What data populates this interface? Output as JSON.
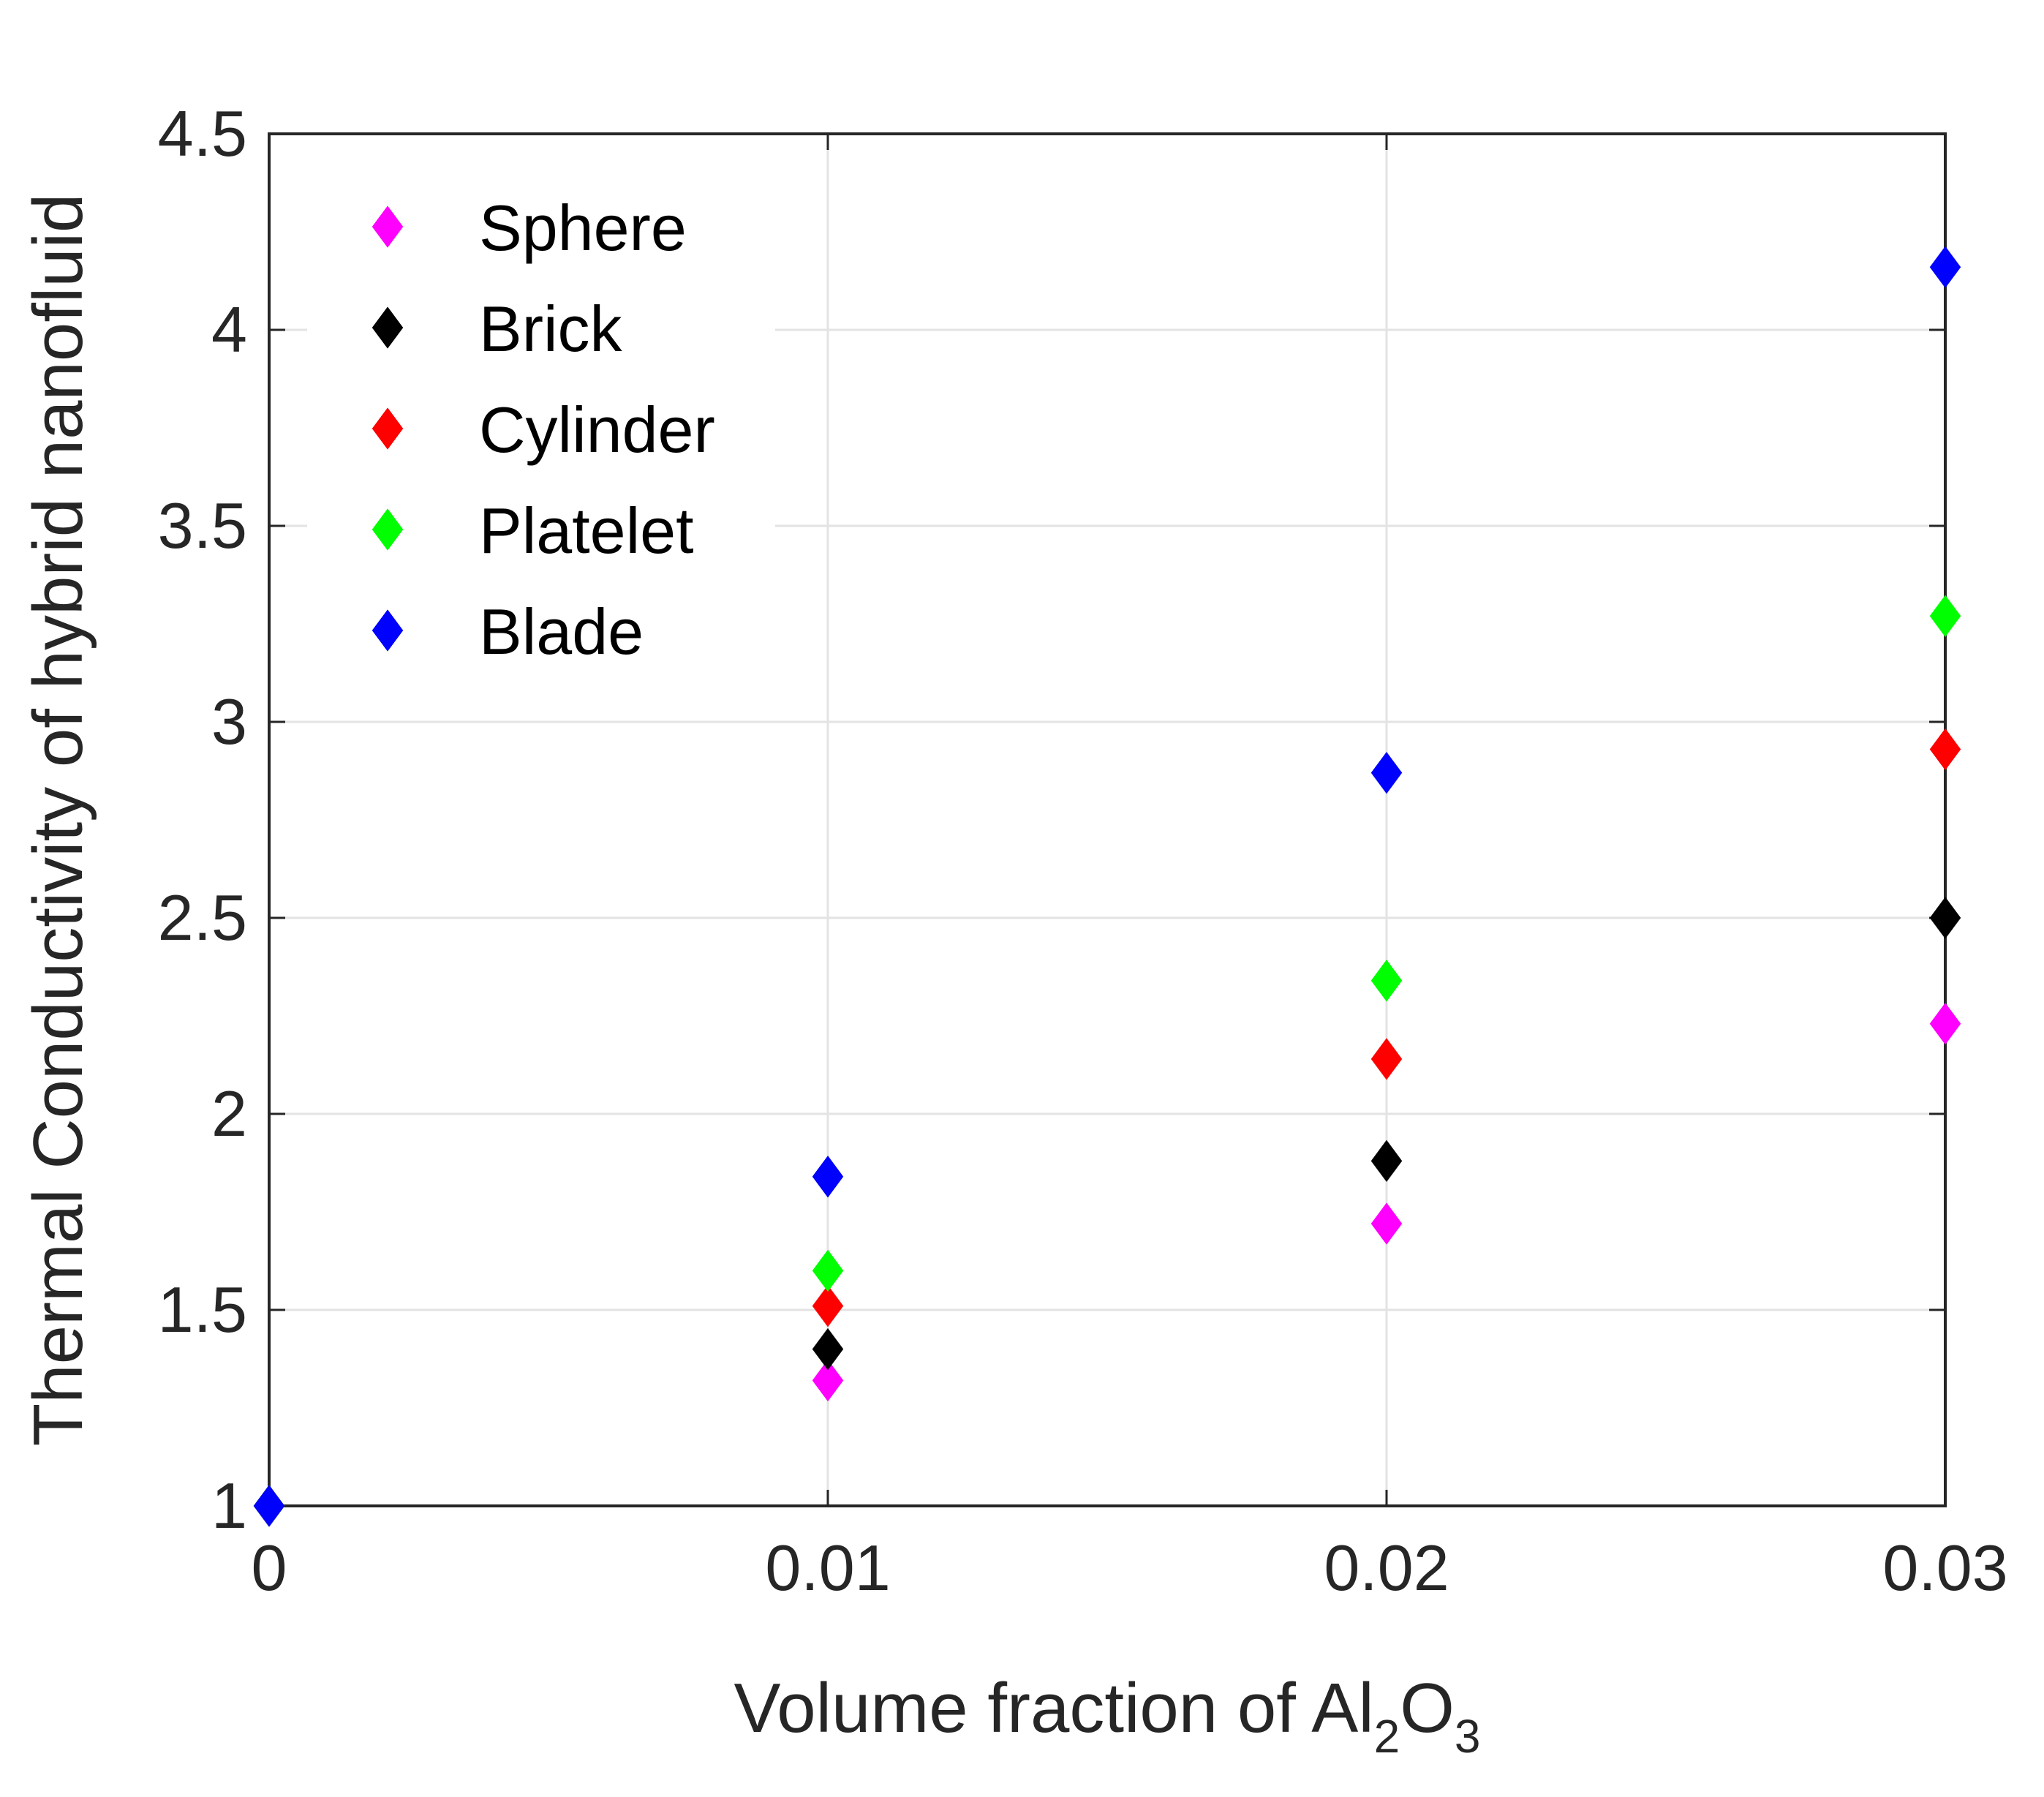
{
  "chart_data": {
    "type": "scatter",
    "title": "",
    "xlabel": {
      "prefix": "Volume fraction of Al",
      "sub1": "2",
      "mid": "O",
      "sub2": "3"
    },
    "ylabel": "Thermal Conductivity of hybrid nanofluid",
    "xlim": [
      0,
      0.03
    ],
    "ylim": [
      1,
      4.5
    ],
    "xticks": [
      0,
      0.01,
      0.02,
      0.03
    ],
    "xtick_labels": [
      "0",
      "0.01",
      "0.02",
      "0.03"
    ],
    "yticks": [
      1,
      1.5,
      2,
      2.5,
      3,
      3.5,
      4,
      4.5
    ],
    "ytick_labels": [
      "1",
      "1.5",
      "2",
      "2.5",
      "3",
      "3.5",
      "4",
      "4.5"
    ],
    "grid": true,
    "legend_position": "top-left",
    "marker": "diamond",
    "x": [
      0,
      0.01,
      0.02,
      0.03
    ],
    "series": [
      {
        "name": "Sphere",
        "color": "#ff00ff",
        "values": [
          1,
          1.32,
          1.72,
          2.23
        ]
      },
      {
        "name": "Brick",
        "color": "#000000",
        "values": [
          1,
          1.4,
          1.88,
          2.5
        ]
      },
      {
        "name": "Cylinder",
        "color": "#ff0000",
        "values": [
          1,
          1.51,
          2.14,
          2.93
        ]
      },
      {
        "name": "Platelet",
        "color": "#00ff00",
        "values": [
          1,
          1.6,
          2.34,
          3.27
        ]
      },
      {
        "name": "Blade",
        "color": "#0000ff",
        "values": [
          1,
          1.84,
          2.87,
          4.16
        ]
      }
    ]
  }
}
